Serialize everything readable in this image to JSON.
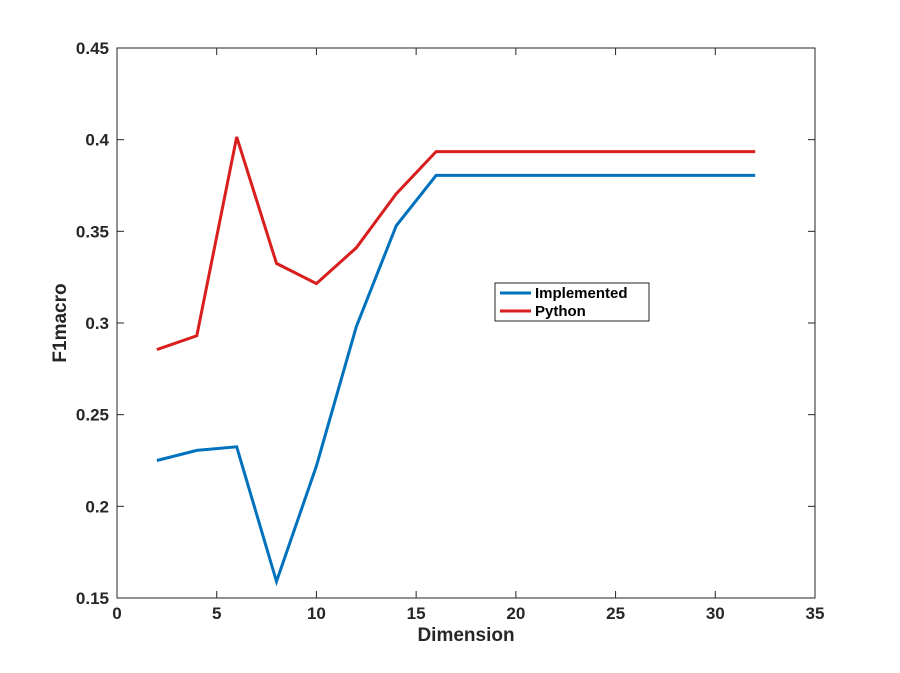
{
  "chart_data": {
    "type": "line",
    "title": "",
    "xlabel": "Dimension",
    "ylabel": "F1macro",
    "xlim": [
      0,
      35
    ],
    "ylim": [
      0.15,
      0.45
    ],
    "xticks": [
      0,
      5,
      10,
      15,
      20,
      25,
      30,
      35
    ],
    "xtick_labels": [
      "0",
      "5",
      "10",
      "15",
      "20",
      "25",
      "30",
      "35"
    ],
    "yticks": [
      0.15,
      0.2,
      0.25,
      0.3,
      0.35,
      0.4,
      0.45
    ],
    "ytick_labels": [
      "0.15",
      "0.2",
      "0.25",
      "0.3",
      "0.35",
      "0.4",
      "0.45"
    ],
    "grid": false,
    "legend_position": "center-right",
    "x": [
      2,
      4,
      6,
      8,
      10,
      12,
      14,
      16,
      32
    ],
    "series": [
      {
        "name": "Implemented",
        "color": "#0072BD",
        "values": [
          0.225,
          0.2305,
          0.2325,
          0.159,
          0.222,
          0.298,
          0.353,
          0.3805,
          0.3805
        ]
      },
      {
        "name": "Python",
        "color": "#D91E1E",
        "values": [
          0.2855,
          0.293,
          0.4015,
          0.3325,
          0.3215,
          0.341,
          0.3705,
          0.3935,
          0.3935
        ]
      }
    ]
  }
}
